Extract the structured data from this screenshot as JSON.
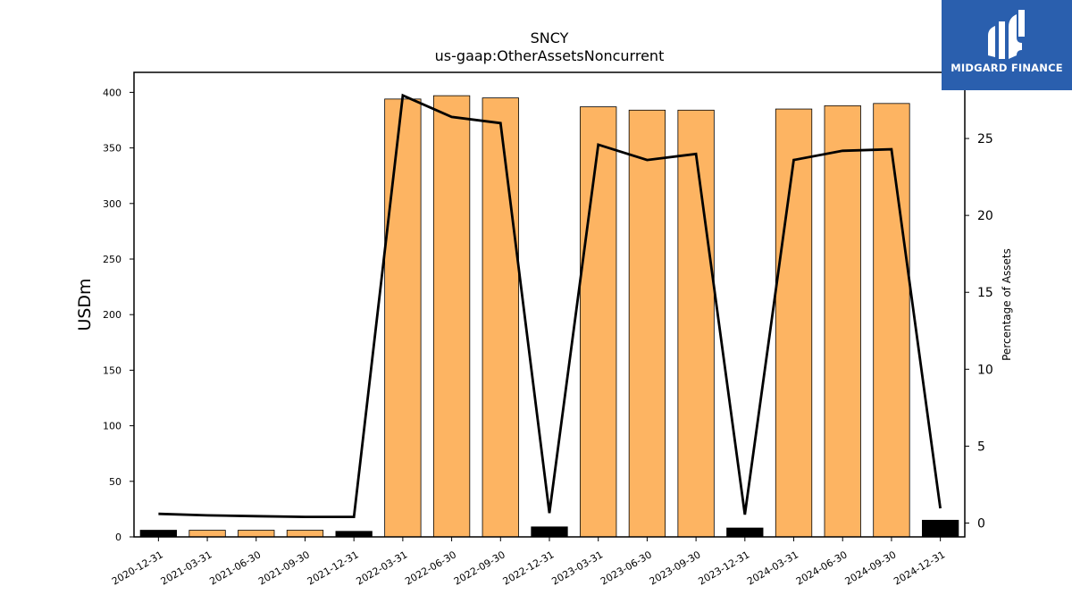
{
  "logo": {
    "text": "MIDGARD FINANCE",
    "background": "#2a5fae"
  },
  "chart_data": {
    "type": "bar",
    "title": "SNCY",
    "subtitle": "us-gaap:OtherAssetsNoncurrent",
    "ylabel": "USDm",
    "y2label": "Percentage of Assets",
    "ylim": [
      0,
      418
    ],
    "y2lim": [
      -0.9,
      29.3
    ],
    "yticks": [
      0,
      50,
      100,
      150,
      200,
      250,
      300,
      350,
      400
    ],
    "y2ticks": [
      0,
      5,
      10,
      15,
      20,
      25
    ],
    "categories": [
      "2020-12-31",
      "2021-03-31",
      "2021-06-30",
      "2021-09-30",
      "2021-12-31",
      "2022-03-31",
      "2022-06-30",
      "2022-09-30",
      "2022-12-31",
      "2023-03-31",
      "2023-06-30",
      "2023-09-30",
      "2023-12-31",
      "2024-03-31",
      "2024-06-30",
      "2024-09-30",
      "2024-12-31"
    ],
    "values": [
      6,
      6,
      6,
      6,
      5,
      394,
      397,
      395,
      9,
      387,
      384,
      384,
      8,
      385,
      388,
      390,
      15
    ],
    "bar_colors": [
      "#000000",
      "#fdb462",
      "#fdb462",
      "#fdb462",
      "#000000",
      "#fdb462",
      "#fdb462",
      "#fdb462",
      "#000000",
      "#fdb462",
      "#fdb462",
      "#fdb462",
      "#000000",
      "#fdb462",
      "#fdb462",
      "#fdb462",
      "#000000"
    ],
    "line_values": [
      0.6,
      0.5,
      0.45,
      0.4,
      0.4,
      27.8,
      26.4,
      26.0,
      0.65,
      24.6,
      23.6,
      24.0,
      0.55,
      23.6,
      24.2,
      24.3,
      0.95
    ],
    "line_color": "#000000",
    "grid": false
  }
}
